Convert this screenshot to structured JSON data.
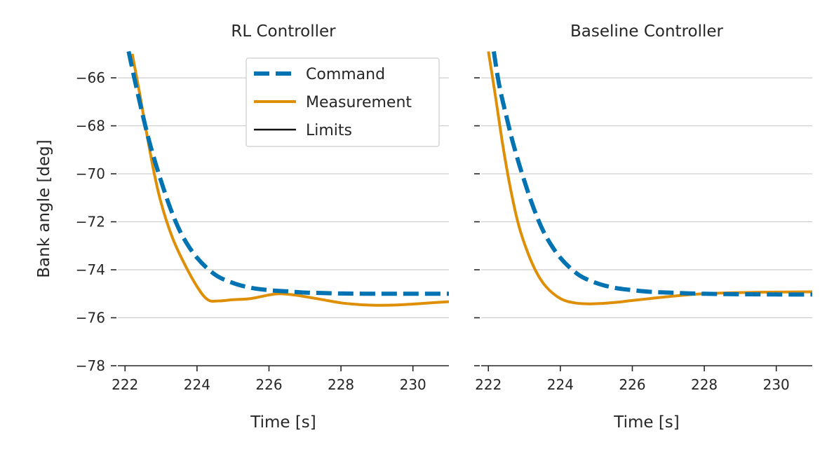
{
  "figure": {
    "ylabel": "Bank angle [deg]",
    "legend": {
      "placement": "upper-right of left panel",
      "entries": [
        {
          "label": "Command",
          "color": "#0173b2",
          "style": "dashed"
        },
        {
          "label": "Measurement",
          "color": "#de8f05",
          "style": "solid"
        },
        {
          "label": "Limits",
          "color": "#111111",
          "style": "solid"
        }
      ]
    }
  },
  "chart_data": [
    {
      "type": "line",
      "title": "RL Controller",
      "xlabel": "Time [s]",
      "ylabel": "Bank angle [deg]",
      "xlim": [
        221.8,
        231
      ],
      "ylim": [
        -78,
        -64.8
      ],
      "xticks": [
        "222",
        "224",
        "226",
        "228",
        "230"
      ],
      "yticks": [
        "−66",
        "−68",
        "−70",
        "−72",
        "−74",
        "−76",
        "−78"
      ],
      "grid": "horizontal",
      "series": [
        {
          "name": "Command",
          "color": "#0173b2",
          "dash": true,
          "x": [
            222.1,
            222.3,
            222.5,
            222.7,
            223.0,
            223.3,
            223.6,
            224.0,
            224.5,
            225.0,
            225.5,
            226.0,
            226.5,
            227.0,
            227.5,
            228.0,
            229.0,
            230.0,
            231.0
          ],
          "y": [
            -64.9,
            -66.3,
            -67.6,
            -68.8,
            -70.3,
            -71.6,
            -72.6,
            -73.5,
            -74.2,
            -74.55,
            -74.75,
            -74.85,
            -74.9,
            -74.95,
            -74.97,
            -74.99,
            -75.0,
            -75.0,
            -75.0
          ]
        },
        {
          "name": "Measurement",
          "color": "#de8f05",
          "dash": false,
          "x": [
            222.2,
            222.4,
            222.6,
            222.8,
            223.0,
            223.3,
            223.6,
            224.0,
            224.3,
            224.6,
            225.0,
            225.5,
            226.0,
            226.3,
            226.7,
            227.0,
            227.5,
            228.0,
            228.5,
            229.0,
            229.5,
            230.0,
            230.5,
            231.0
          ],
          "y": [
            -65.0,
            -66.6,
            -68.3,
            -69.9,
            -71.2,
            -72.6,
            -73.6,
            -74.7,
            -75.25,
            -75.3,
            -75.25,
            -75.2,
            -75.05,
            -75.0,
            -75.05,
            -75.12,
            -75.25,
            -75.38,
            -75.45,
            -75.48,
            -75.47,
            -75.43,
            -75.38,
            -75.33
          ]
        }
      ]
    },
    {
      "type": "line",
      "title": "Baseline Controller",
      "xlabel": "Time [s]",
      "xlim": [
        221.8,
        231
      ],
      "ylim": [
        -78,
        -64.8
      ],
      "xticks": [
        "222",
        "224",
        "226",
        "228",
        "230"
      ],
      "grid": "horizontal",
      "series": [
        {
          "name": "Command",
          "color": "#0173b2",
          "dash": true,
          "x": [
            222.15,
            222.3,
            222.5,
            222.7,
            223.0,
            223.3,
            223.6,
            224.0,
            224.5,
            225.0,
            225.5,
            226.0,
            226.5,
            227.0,
            227.5,
            228.0,
            229.0,
            230.0,
            231.0
          ],
          "y": [
            -64.9,
            -66.3,
            -67.6,
            -68.8,
            -70.3,
            -71.6,
            -72.6,
            -73.5,
            -74.2,
            -74.55,
            -74.75,
            -74.85,
            -74.92,
            -74.95,
            -74.98,
            -75.0,
            -75.02,
            -75.03,
            -75.03
          ]
        },
        {
          "name": "Measurement",
          "color": "#de8f05",
          "dash": false,
          "x": [
            222.0,
            222.2,
            222.4,
            222.6,
            222.8,
            223.0,
            223.3,
            223.6,
            224.0,
            224.4,
            224.8,
            225.2,
            225.6,
            226.0,
            226.5,
            227.0,
            227.5,
            228.0,
            228.5,
            229.0,
            230.0,
            231.0
          ],
          "y": [
            -64.9,
            -66.8,
            -68.8,
            -70.5,
            -71.9,
            -72.9,
            -74.0,
            -74.7,
            -75.2,
            -75.38,
            -75.42,
            -75.4,
            -75.35,
            -75.28,
            -75.2,
            -75.12,
            -75.05,
            -75.0,
            -74.97,
            -74.95,
            -74.93,
            -74.92
          ]
        }
      ]
    }
  ]
}
